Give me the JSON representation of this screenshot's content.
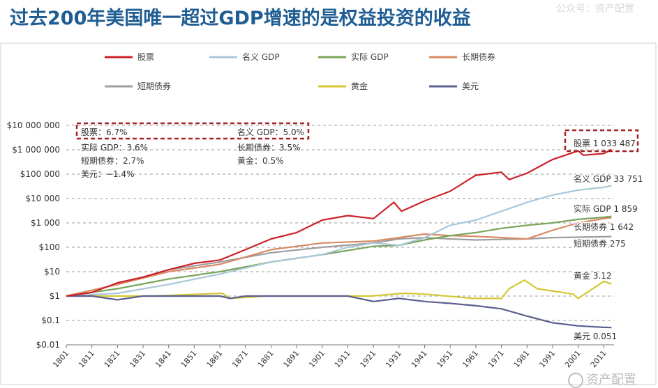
{
  "title": "过去200年美国唯一超过GDP增速的是权益投资的收益",
  "watermark_top": "公众号：资产配置",
  "watermark_bottom": "资产配置",
  "chart_data": {
    "type": "line",
    "yscale": "log",
    "ylim": [
      0.01,
      10000000
    ],
    "xlim": [
      1801,
      2015
    ],
    "y_ticks": [
      "$10 000 000",
      "$1 000 000",
      "$100 000",
      "$10 000",
      "$1 000",
      "$100",
      "$10",
      "$1",
      "$0.1",
      "$0.01"
    ],
    "x_ticks": [
      "1801",
      "1811",
      "1821",
      "1831",
      "1841",
      "1851",
      "1861",
      "1871",
      "1881",
      "1891",
      "1901",
      "1911",
      "1921",
      "1931",
      "1941",
      "1951",
      "1961",
      "1971",
      "1981",
      "1991",
      "2001",
      "2011"
    ],
    "legend": [
      "股票",
      "名义 GDP",
      "实际 GDP",
      "长期债券",
      "短期债券",
      "黄金",
      "美元"
    ],
    "annotations": {
      "box_left": "股票：6.7%",
      "box_right": "名义 GDP：5.0%",
      "rates_left": [
        "实际 GDP：3.6%",
        "短期债券：2.7%",
        "美元：−1.4%"
      ],
      "rates_right": [
        "长期债券：3.5%",
        "黄金：0.5%"
      ]
    },
    "series": [
      {
        "name": "股票",
        "color": "#cc2229",
        "end_label": "股票 1 033 487",
        "x": [
          1801,
          1811,
          1821,
          1831,
          1841,
          1851,
          1861,
          1871,
          1881,
          1891,
          1901,
          1911,
          1921,
          1929,
          1932,
          1941,
          1951,
          1961,
          1971,
          1974,
          1981,
          1991,
          2001,
          2003,
          2011,
          2014
        ],
        "y": [
          1,
          1.4,
          3.5,
          6,
          12,
          22,
          30,
          80,
          220,
          400,
          1300,
          2000,
          1500,
          7000,
          3000,
          8000,
          20000,
          90000,
          120000,
          60000,
          110000,
          400000,
          900000,
          600000,
          700000,
          1033487
        ]
      },
      {
        "name": "名义 GDP",
        "color": "#a9c7d9",
        "end_label": "名义 GDP 33 751",
        "x": [
          1801,
          1821,
          1841,
          1861,
          1881,
          1901,
          1911,
          1921,
          1931,
          1941,
          1951,
          1961,
          1971,
          1981,
          1991,
          2001,
          2011,
          2014
        ],
        "y": [
          1,
          1.3,
          3,
          8,
          25,
          50,
          100,
          150,
          120,
          250,
          800,
          1300,
          3000,
          7000,
          14000,
          22000,
          29000,
          33751
        ]
      },
      {
        "name": "实际 GDP",
        "color": "#7aa55a",
        "end_label": "实际 GDP 1 859",
        "x": [
          1801,
          1821,
          1841,
          1861,
          1881,
          1901,
          1921,
          1931,
          1941,
          1951,
          1961,
          1971,
          1981,
          1991,
          2001,
          2011,
          2014
        ],
        "y": [
          1,
          2,
          5,
          10,
          25,
          50,
          110,
          120,
          200,
          300,
          400,
          600,
          800,
          1000,
          1400,
          1700,
          1859
        ]
      },
      {
        "name": "长期债券",
        "color": "#d88a63",
        "end_label": "长期债券 1 642",
        "x": [
          1801,
          1821,
          1841,
          1861,
          1881,
          1901,
          1921,
          1931,
          1941,
          1951,
          1961,
          1971,
          1981,
          1991,
          2001,
          2011,
          2014
        ],
        "y": [
          1,
          3,
          10,
          20,
          80,
          150,
          180,
          250,
          350,
          300,
          280,
          250,
          220,
          500,
          1000,
          1500,
          1642
        ]
      },
      {
        "name": "短期债券",
        "color": "#9e9e9e",
        "end_label": "短期债券 275",
        "x": [
          1801,
          1821,
          1841,
          1861,
          1881,
          1901,
          1921,
          1931,
          1941,
          1951,
          1961,
          1971,
          1981,
          1991,
          2001,
          2011,
          2014
        ],
        "y": [
          1,
          3,
          12,
          25,
          60,
          100,
          150,
          220,
          250,
          220,
          200,
          210,
          220,
          250,
          260,
          270,
          275
        ]
      },
      {
        "name": "黄金",
        "color": "#d4c733",
        "end_label": "黄金 3.12",
        "x": [
          1801,
          1835,
          1862,
          1865,
          1879,
          1920,
          1933,
          1941,
          1960,
          1971,
          1974,
          1980,
          1985,
          1999,
          2001,
          2011,
          2014
        ],
        "y": [
          1,
          1,
          1.3,
          0.8,
          1,
          1,
          1.3,
          1.2,
          0.8,
          0.8,
          2,
          4.5,
          2,
          1.2,
          0.8,
          4,
          3.12
        ]
      },
      {
        "name": "美元",
        "color": "#5b5f8f",
        "end_label": "美元 0.051",
        "x": [
          1801,
          1811,
          1821,
          1831,
          1861,
          1865,
          1871,
          1901,
          1911,
          1921,
          1931,
          1941,
          1951,
          1961,
          1971,
          1981,
          1991,
          2001,
          2011,
          2014
        ],
        "y": [
          1,
          1,
          0.7,
          1,
          1,
          0.8,
          1,
          1,
          1,
          0.6,
          0.8,
          0.6,
          0.5,
          0.4,
          0.3,
          0.15,
          0.08,
          0.06,
          0.052,
          0.051
        ]
      }
    ]
  }
}
